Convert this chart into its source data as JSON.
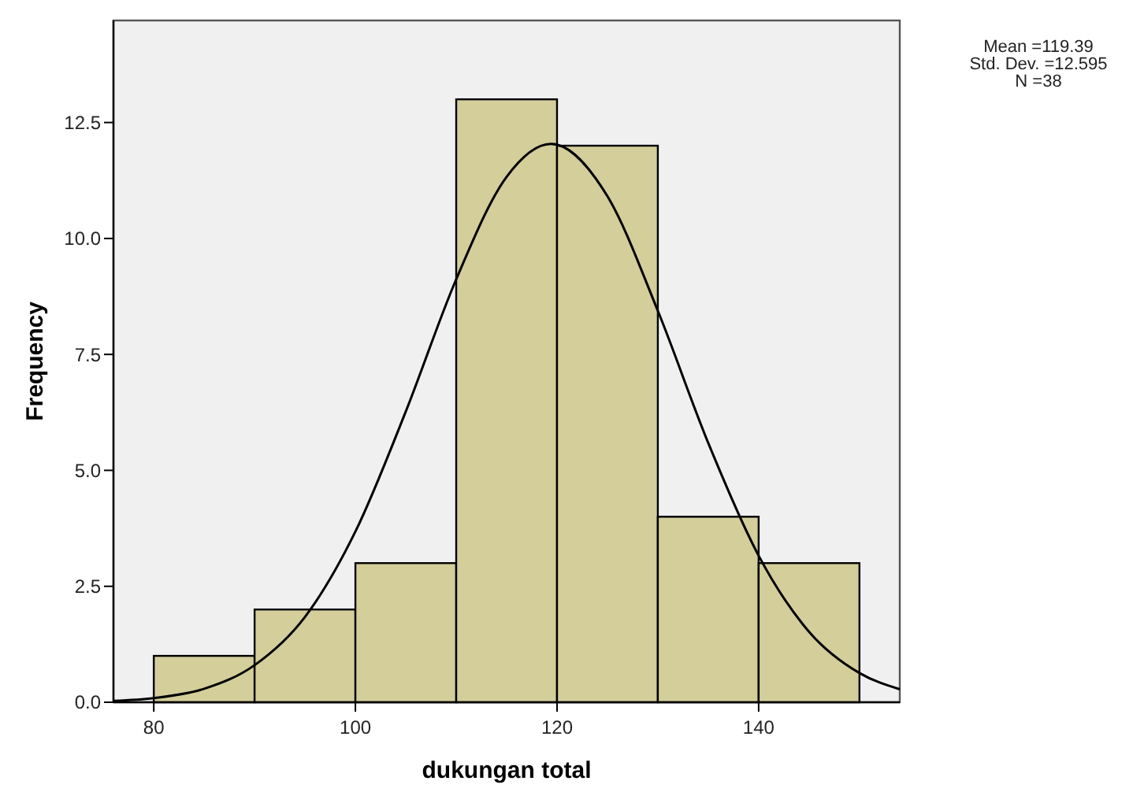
{
  "chart_data": {
    "type": "histogram",
    "xlabel": "dukungan total",
    "ylabel": "Frequency",
    "bins": [
      80,
      90,
      100,
      110,
      120,
      130,
      140,
      150
    ],
    "values": [
      1,
      2,
      3,
      13,
      12,
      4,
      3
    ],
    "color": "#d3ce9a",
    "series": [
      {
        "type": "line",
        "color": "#000000",
        "x": [
          76,
          80,
          85,
          90,
          95,
          100,
          105,
          110,
          115,
          119.39,
          125,
          130,
          135,
          140,
          145,
          150,
          154
        ],
        "values": [
          0.03,
          0.09,
          0.29,
          0.8,
          1.84,
          3.68,
          6.27,
          9.12,
          11.33,
          12.04,
          10.91,
          8.44,
          5.59,
          3.16,
          1.52,
          0.63,
          0.28
        ]
      }
    ],
    "xlim": [
      76,
      154
    ],
    "ylim": [
      0,
      14.7
    ],
    "xticks": [
      80,
      100,
      120,
      140
    ],
    "yticks": [
      {
        "value": 0,
        "label": "0.0"
      },
      {
        "value": 2.5,
        "label": "2.5"
      },
      {
        "value": 5,
        "label": "5.0"
      },
      {
        "value": 7.5,
        "label": "7.5"
      },
      {
        "value": 10,
        "label": "10.0"
      },
      {
        "value": 12.5,
        "label": "12.5"
      }
    ],
    "grid": false,
    "annotations": [
      "Mean =119.39",
      "Std. Dev. =12.595",
      "N =38"
    ]
  }
}
